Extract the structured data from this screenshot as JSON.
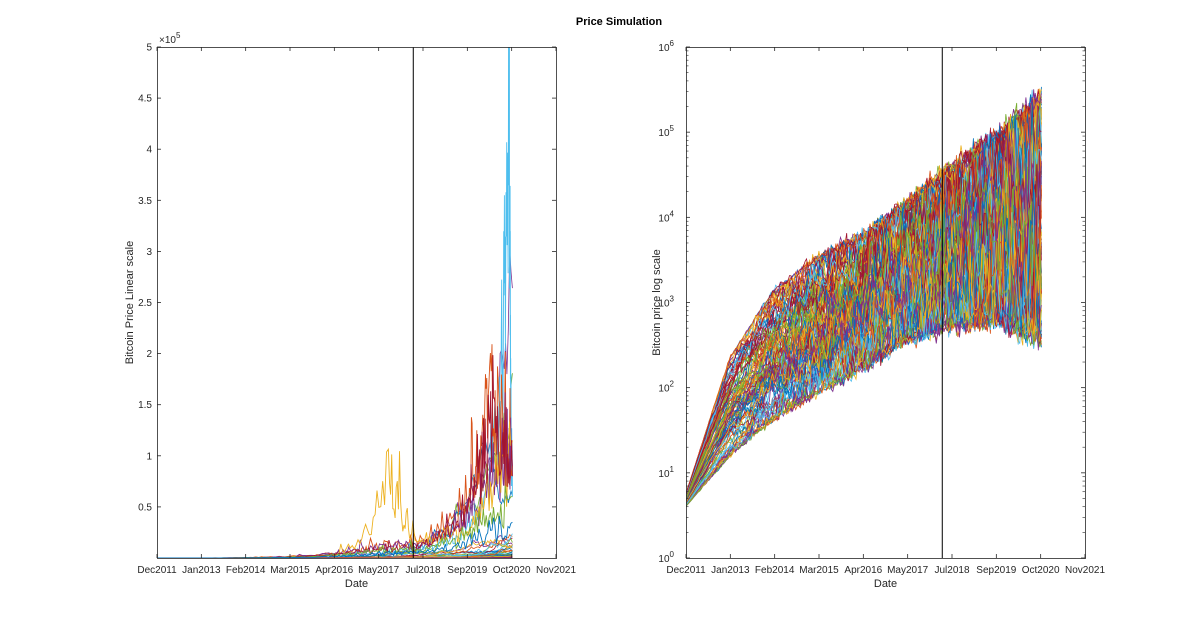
{
  "figure": {
    "title": "Price Simulation"
  },
  "chart_data": [
    {
      "type": "line",
      "title": "",
      "xlabel": "Date",
      "ylabel": "Bitcoin Price Linear scale",
      "yscale": "linear",
      "exponent_label": "×10",
      "exponent_power": "5",
      "x_ticks": [
        "Dec2011",
        "Jan2013",
        "Feb2014",
        "Mar2015",
        "Apr2016",
        "May2017",
        "Jul2018",
        "Sep2019",
        "Oct2020",
        "Nov2021"
      ],
      "y_ticks": [
        "0.5",
        "1",
        "1.5",
        "2",
        "2.5",
        "3",
        "3.5",
        "4",
        "4.5",
        "5"
      ],
      "y_tick_values": [
        50000,
        100000,
        150000,
        200000,
        250000,
        300000,
        350000,
        400000,
        450000,
        500000
      ],
      "xlim": [
        "2011-12-01",
        "2021-11-01"
      ],
      "ylim": [
        0,
        500000
      ],
      "vertical_line": "2018-04-15",
      "grid": false,
      "legend": "none",
      "note_series": "many Monte Carlo simulated price paths, colored with the default MATLAB color cycle",
      "series_colors": [
        "#0072BD",
        "#D95319",
        "#EDB120",
        "#7E2F8E",
        "#77AC30",
        "#4DBEEE",
        "#A2142F"
      ],
      "series": [
        {
          "color": "#4DBEEE",
          "x": [
            "2011-12-01",
            "2014-02-01",
            "2016-04-01",
            "2017-05-01",
            "2018-07-01",
            "2019-09-01",
            "2020-06-01",
            "2020-09-01",
            "2020-10-01"
          ],
          "values": [
            5,
            300,
            3000,
            6000,
            9000,
            30000,
            120000,
            477000,
            60000
          ]
        },
        {
          "color": "#D95319",
          "x": [
            "2011-12-01",
            "2014-02-01",
            "2016-04-01",
            "2017-05-01",
            "2018-07-01",
            "2019-09-01",
            "2020-03-01",
            "2020-10-01"
          ],
          "values": [
            5,
            500,
            4000,
            12000,
            15000,
            60000,
            168000,
            90000
          ]
        },
        {
          "color": "#7E2F8E",
          "x": [
            "2011-12-01",
            "2014-02-01",
            "2016-04-01",
            "2017-05-01",
            "2018-07-01",
            "2019-09-01",
            "2020-07-01",
            "2020-10-01"
          ],
          "values": [
            5,
            400,
            5000,
            10000,
            12000,
            40000,
            100000,
            90000
          ]
        },
        {
          "color": "#EDB120",
          "x": [
            "2011-12-01",
            "2014-02-01",
            "2016-04-01",
            "2017-09-01",
            "2018-07-01",
            "2019-09-01",
            "2020-10-01"
          ],
          "values": [
            5,
            300,
            3000,
            87000,
            15000,
            30000,
            115000
          ]
        },
        {
          "color": "#A2142F",
          "x": [
            "2011-12-01",
            "2014-02-01",
            "2016-04-01",
            "2017-05-01",
            "2018-07-01",
            "2019-09-01",
            "2020-04-01",
            "2020-10-01"
          ],
          "values": [
            5,
            250,
            3500,
            9000,
            11000,
            50000,
            140000,
            80000
          ]
        },
        {
          "color": "#77AC30",
          "x": [
            "2011-12-01",
            "2014-02-01",
            "2016-04-01",
            "2017-05-01",
            "2018-07-01",
            "2019-09-01",
            "2020-10-01"
          ],
          "values": [
            5,
            200,
            2500,
            7000,
            9000,
            25000,
            60000
          ]
        },
        {
          "color": "#0072BD",
          "x": [
            "2011-12-01",
            "2014-02-01",
            "2016-04-01",
            "2017-05-01",
            "2018-07-01",
            "2019-09-01",
            "2020-10-01"
          ],
          "values": [
            5,
            150,
            1500,
            4000,
            5000,
            15000,
            35000
          ]
        }
      ]
    },
    {
      "type": "line",
      "title": "",
      "xlabel": "Date",
      "ylabel": "Bitcoin price log scale",
      "yscale": "log",
      "x_ticks": [
        "Dec2011",
        "Jan2013",
        "Feb2014",
        "Mar2015",
        "Apr2016",
        "May2017",
        "Jul2018",
        "Sep2019",
        "Oct2020",
        "Nov2021"
      ],
      "y_ticks": [
        {
          "base": "10",
          "exp": "0"
        },
        {
          "base": "10",
          "exp": "1"
        },
        {
          "base": "10",
          "exp": "2"
        },
        {
          "base": "10",
          "exp": "3"
        },
        {
          "base": "10",
          "exp": "4"
        },
        {
          "base": "10",
          "exp": "5"
        },
        {
          "base": "10",
          "exp": "6"
        }
      ],
      "xlim": [
        "2011-12-01",
        "2021-11-01"
      ],
      "ylim": [
        1,
        1000000
      ],
      "vertical_line": "2018-04-15",
      "grid": false,
      "legend": "none",
      "note_series": "many Monte Carlo simulated price paths starting near 5 and spreading to roughly 300–480000 by Oct2020",
      "series_colors": [
        "#0072BD",
        "#D95319",
        "#EDB120",
        "#7E2F8E",
        "#77AC30",
        "#4DBEEE",
        "#A2142F"
      ],
      "envelope": {
        "x": [
          "2011-12-01",
          "2013-01-01",
          "2014-02-01",
          "2015-03-01",
          "2016-04-01",
          "2017-05-01",
          "2018-07-01",
          "2019-09-01",
          "2020-10-01"
        ],
        "upper": [
          6,
          300,
          2000,
          5000,
          9000,
          20000,
          60000,
          150000,
          480000
        ],
        "lower": [
          4,
          15,
          40,
          80,
          150,
          350,
          500,
          600,
          350
        ]
      }
    }
  ]
}
